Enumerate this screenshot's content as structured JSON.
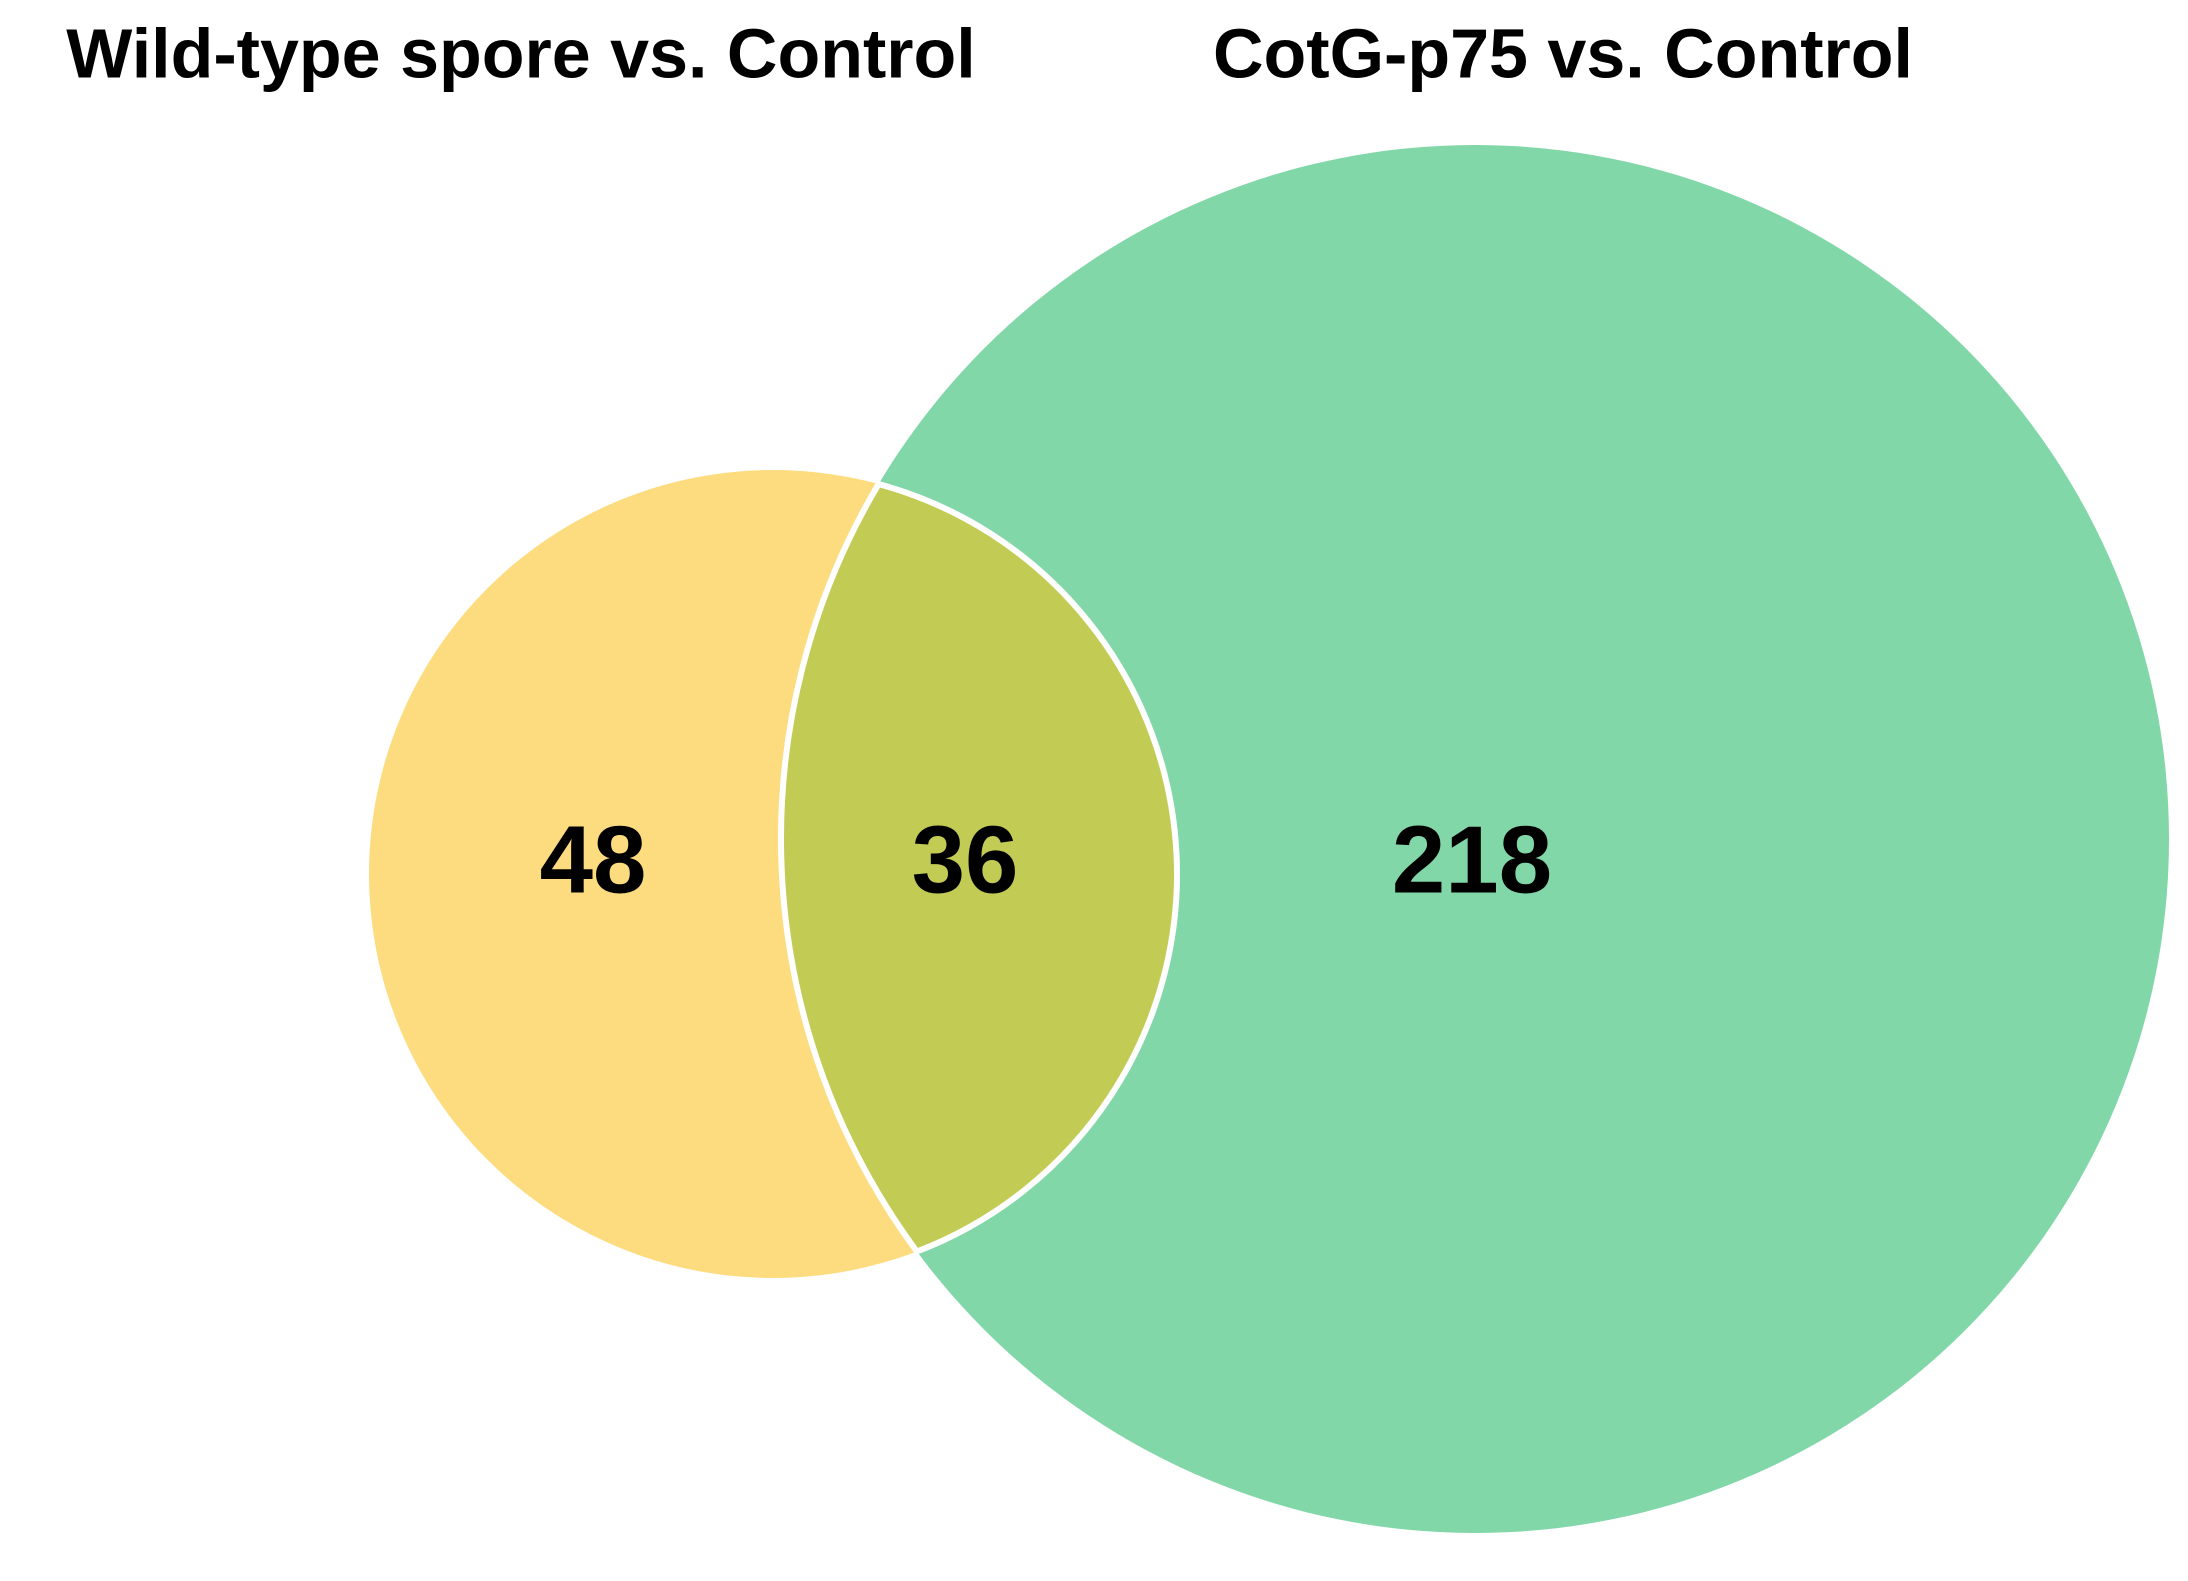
{
  "chart_data": {
    "type": "venn",
    "sets": [
      {
        "name": "Wild-type spore vs. Control",
        "color": "#fddc80",
        "value": 48
      },
      {
        "name": "CotG-p75 vs. Control",
        "color": "#82d7a9",
        "value": 218
      }
    ],
    "intersection": {
      "color": "#c2cc55",
      "value": 36
    }
  }
}
